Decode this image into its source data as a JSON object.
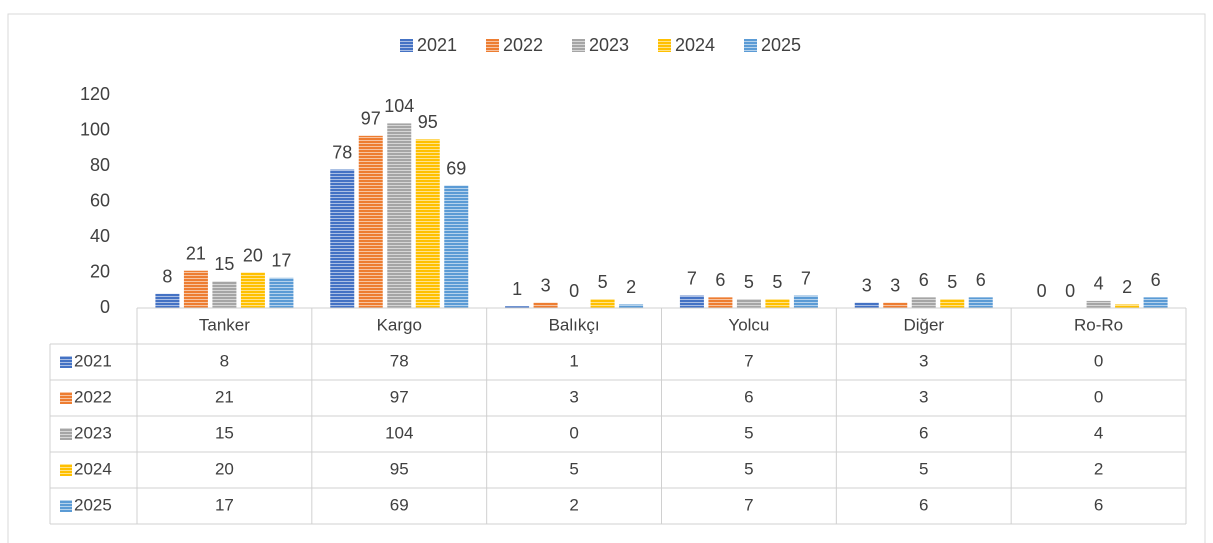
{
  "chart_data": {
    "type": "bar",
    "categories": [
      "Tanker",
      "Kargo",
      "Balıkçı",
      "Yolcu",
      "Diğer",
      "Ro-Ro"
    ],
    "series": [
      {
        "name": "2021",
        "color": "#4472c4",
        "values": [
          8,
          78,
          1,
          7,
          3,
          0
        ]
      },
      {
        "name": "2022",
        "color": "#ed7d31",
        "values": [
          21,
          97,
          3,
          6,
          3,
          0
        ]
      },
      {
        "name": "2023",
        "color": "#a5a5a5",
        "values": [
          15,
          104,
          0,
          5,
          6,
          4
        ]
      },
      {
        "name": "2024",
        "color": "#ffc000",
        "values": [
          20,
          95,
          5,
          5,
          5,
          2
        ]
      },
      {
        "name": "2025",
        "color": "#5b9bd5",
        "values": [
          17,
          69,
          2,
          7,
          6,
          6
        ]
      }
    ],
    "ylim": [
      0,
      120
    ],
    "yticks": [
      0,
      20,
      40,
      60,
      80,
      100,
      120
    ],
    "legend": "top",
    "data_table": true
  }
}
